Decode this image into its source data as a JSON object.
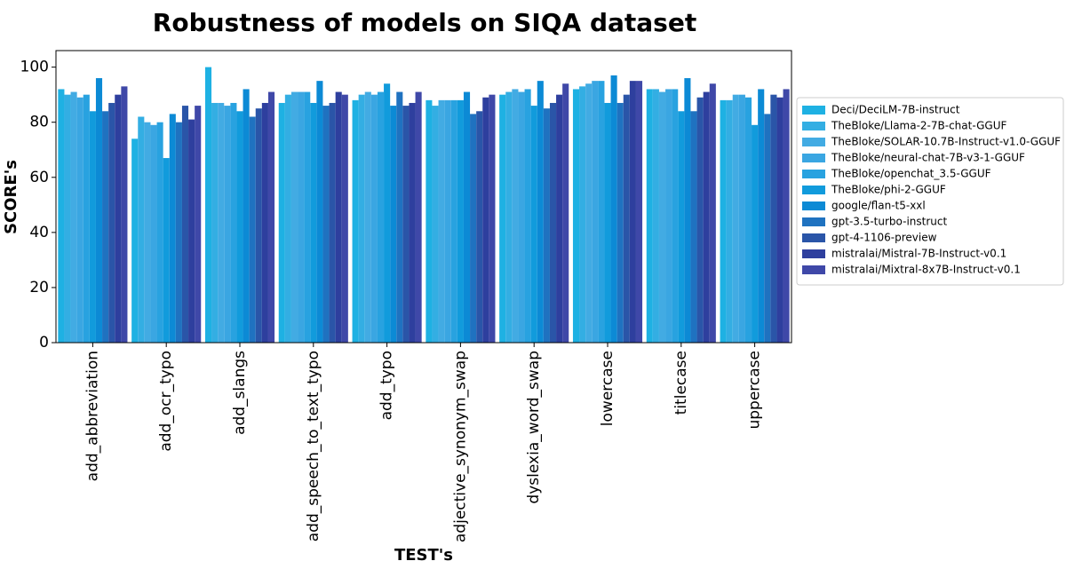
{
  "chart_data": {
    "type": "bar",
    "title": "Robustness of models on SIQA dataset",
    "xlabel": "TEST's",
    "ylabel": "SCORE's",
    "ylim": [
      0,
      106
    ],
    "yticks": [
      0,
      20,
      40,
      60,
      80,
      100
    ],
    "grid": false,
    "legend_position": "right",
    "categories": [
      "add_abbreviation",
      "add_ocr_typo",
      "add_slangs",
      "add_speech_to_text_typo",
      "add_typo",
      "adjective_synonym_swap",
      "dyslexia_word_swap",
      "lowercase",
      "titlecase",
      "uppercase"
    ],
    "series": [
      {
        "name": "Deci/DeciLM-7B-instruct",
        "color": "#1eb1e3",
        "values": [
          92,
          74,
          100,
          87,
          88,
          88,
          90,
          92,
          92,
          88
        ]
      },
      {
        "name": "TheBloke/Llama-2-7B-chat-GGUF",
        "color": "#33aee3",
        "values": [
          90,
          82,
          87,
          90,
          90,
          86,
          91,
          93,
          92,
          88
        ]
      },
      {
        "name": "TheBloke/SOLAR-10.7B-Instruct-v1.0-GGUF",
        "color": "#42abe3",
        "values": [
          91,
          80,
          87,
          91,
          91,
          88,
          92,
          94,
          91,
          90
        ]
      },
      {
        "name": "TheBloke/neural-chat-7B-v3-1-GGUF",
        "color": "#3aa6e2",
        "values": [
          89,
          79,
          86,
          91,
          90,
          88,
          91,
          95,
          92,
          90
        ]
      },
      {
        "name": "TheBloke/openchat_3.5-GGUF",
        "color": "#28a2e0",
        "values": [
          90,
          80,
          87,
          91,
          91,
          88,
          92,
          95,
          92,
          89
        ]
      },
      {
        "name": "TheBloke/phi-2-GGUF",
        "color": "#119bdc",
        "values": [
          84,
          67,
          84,
          87,
          94,
          88,
          86,
          87,
          84,
          79
        ]
      },
      {
        "name": "google/flan-t5-xxl",
        "color": "#0c8ad5",
        "values": [
          96,
          83,
          92,
          95,
          86,
          91,
          95,
          97,
          96,
          92
        ]
      },
      {
        "name": "gpt-3.5-turbo-instruct",
        "color": "#1f72c0",
        "values": [
          84,
          80,
          82,
          86,
          91,
          83,
          85,
          87,
          84,
          83
        ]
      },
      {
        "name": "gpt-4-1106-preview",
        "color": "#2a55a8",
        "values": [
          87,
          86,
          85,
          87,
          86,
          84,
          87,
          90,
          89,
          90
        ]
      },
      {
        "name": "mistralai/Mistral-7B-Instruct-v0.1",
        "color": "#2e3f9e",
        "values": [
          90,
          81,
          87,
          91,
          87,
          89,
          90,
          95,
          91,
          89
        ]
      },
      {
        "name": "mistralai/Mixtral-8x7B-Instruct-v0.1",
        "color": "#3f48a8",
        "values": [
          93,
          86,
          91,
          90,
          91,
          90,
          94,
          95,
          94,
          92
        ]
      }
    ]
  }
}
